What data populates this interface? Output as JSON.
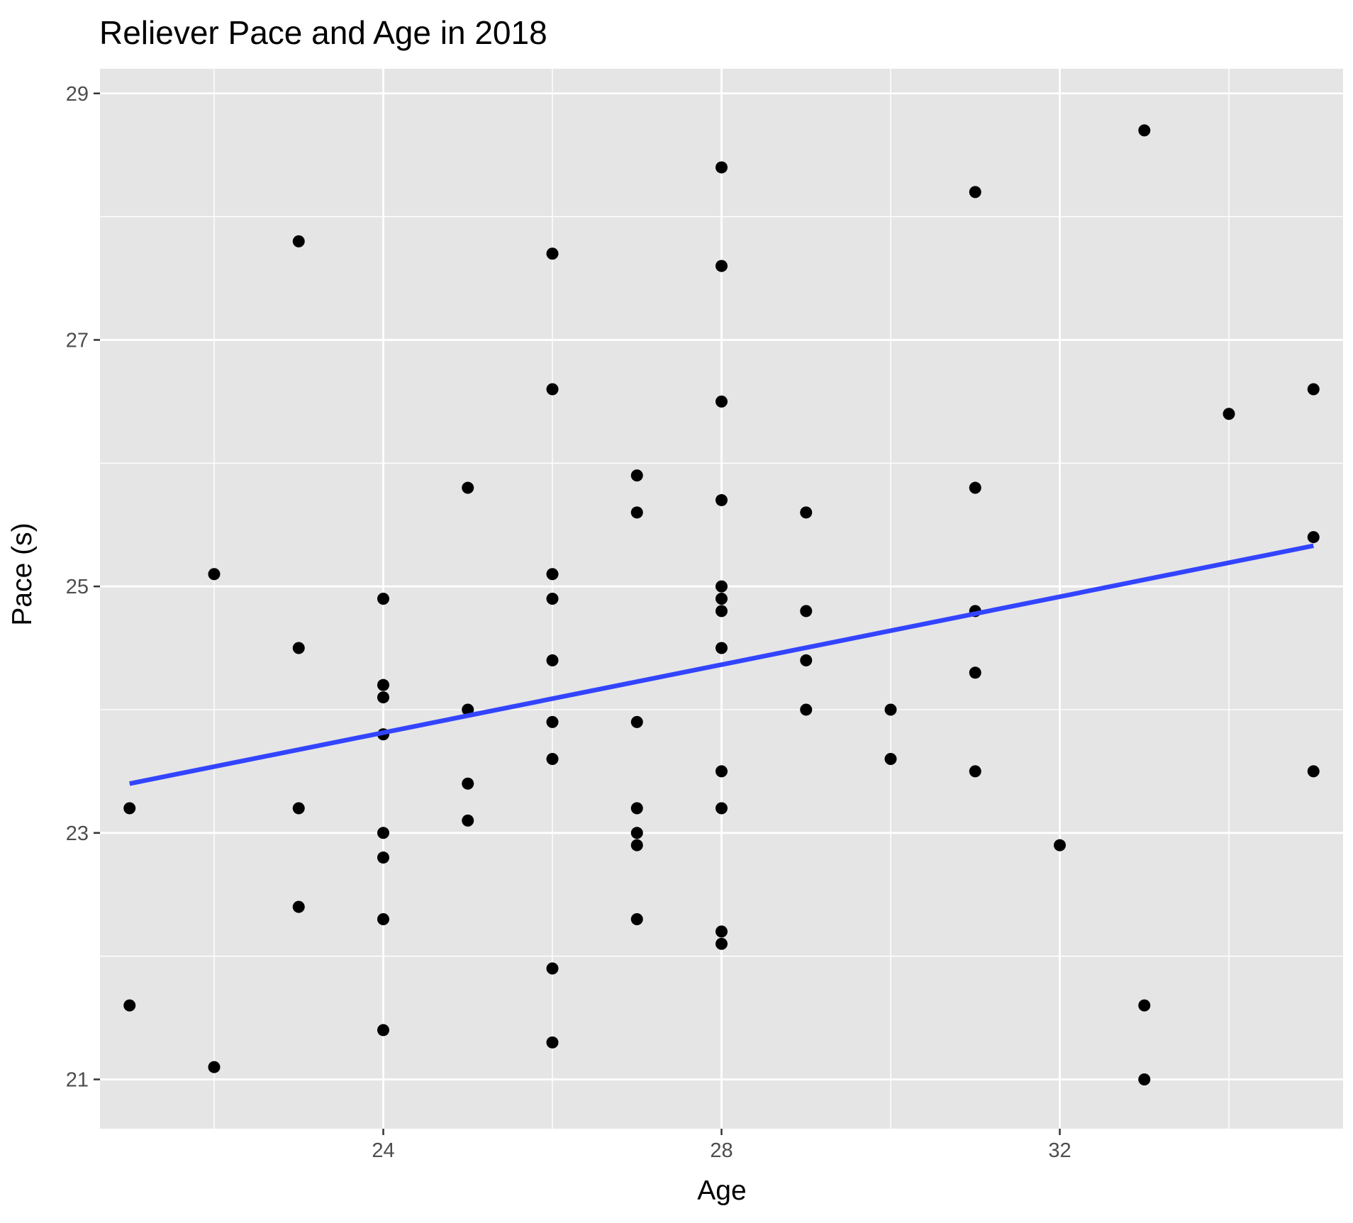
{
  "chart_data": {
    "type": "scatter",
    "title": "Reliever Pace and Age in 2018",
    "xlabel": "Age",
    "ylabel": "Pace (s)",
    "xlim": [
      20.65,
      35.35
    ],
    "ylim": [
      20.6,
      29.2
    ],
    "x_ticks": [
      24,
      28,
      32
    ],
    "x_tick_labels": [
      "24",
      "28",
      "32"
    ],
    "x_minor_ticks": [
      22,
      26,
      30,
      34
    ],
    "y_ticks": [
      21,
      23,
      25,
      27,
      29
    ],
    "y_tick_labels": [
      "21",
      "23",
      "25",
      "27",
      "29"
    ],
    "y_minor_ticks": [
      22,
      24,
      26,
      28
    ],
    "grid": true,
    "legend": "none",
    "colors": {
      "panel": "#e5e5e5",
      "grid": "#ffffff",
      "points": "#000000",
      "trend_line": "#3344ff",
      "tick_text": "#4d4d4d",
      "tick_marks": "#333333"
    },
    "points": [
      {
        "x": 21,
        "y": 23.2
      },
      {
        "x": 21,
        "y": 21.6
      },
      {
        "x": 22,
        "y": 25.1
      },
      {
        "x": 22,
        "y": 21.1
      },
      {
        "x": 23,
        "y": 27.8
      },
      {
        "x": 23,
        "y": 24.5
      },
      {
        "x": 23,
        "y": 23.2
      },
      {
        "x": 23,
        "y": 22.4
      },
      {
        "x": 24,
        "y": 24.9
      },
      {
        "x": 24,
        "y": 24.2
      },
      {
        "x": 24,
        "y": 24.1
      },
      {
        "x": 24,
        "y": 23.8
      },
      {
        "x": 24,
        "y": 23.0
      },
      {
        "x": 24,
        "y": 22.8
      },
      {
        "x": 24,
        "y": 22.3
      },
      {
        "x": 24,
        "y": 21.4
      },
      {
        "x": 25,
        "y": 25.8
      },
      {
        "x": 25,
        "y": 24.0
      },
      {
        "x": 25,
        "y": 23.4
      },
      {
        "x": 25,
        "y": 23.1
      },
      {
        "x": 26,
        "y": 27.7
      },
      {
        "x": 26,
        "y": 26.6
      },
      {
        "x": 26,
        "y": 25.1
      },
      {
        "x": 26,
        "y": 24.9
      },
      {
        "x": 26,
        "y": 24.4
      },
      {
        "x": 26,
        "y": 23.9
      },
      {
        "x": 26,
        "y": 23.6
      },
      {
        "x": 26,
        "y": 21.9
      },
      {
        "x": 26,
        "y": 21.3
      },
      {
        "x": 27,
        "y": 25.9
      },
      {
        "x": 27,
        "y": 25.6
      },
      {
        "x": 27,
        "y": 23.9
      },
      {
        "x": 27,
        "y": 23.2
      },
      {
        "x": 27,
        "y": 23.0
      },
      {
        "x": 27,
        "y": 22.9
      },
      {
        "x": 27,
        "y": 22.3
      },
      {
        "x": 28,
        "y": 28.4
      },
      {
        "x": 28,
        "y": 27.6
      },
      {
        "x": 28,
        "y": 26.5
      },
      {
        "x": 28,
        "y": 25.7
      },
      {
        "x": 28,
        "y": 25.0
      },
      {
        "x": 28,
        "y": 24.9
      },
      {
        "x": 28,
        "y": 24.8
      },
      {
        "x": 28,
        "y": 24.5
      },
      {
        "x": 28,
        "y": 23.5
      },
      {
        "x": 28,
        "y": 23.2
      },
      {
        "x": 28,
        "y": 22.2
      },
      {
        "x": 28,
        "y": 22.1
      },
      {
        "x": 29,
        "y": 25.6
      },
      {
        "x": 29,
        "y": 24.8
      },
      {
        "x": 29,
        "y": 24.4
      },
      {
        "x": 29,
        "y": 24.0
      },
      {
        "x": 30,
        "y": 24.0
      },
      {
        "x": 30,
        "y": 23.6
      },
      {
        "x": 31,
        "y": 28.2
      },
      {
        "x": 31,
        "y": 25.8
      },
      {
        "x": 31,
        "y": 24.8
      },
      {
        "x": 31,
        "y": 24.3
      },
      {
        "x": 31,
        "y": 23.5
      },
      {
        "x": 32,
        "y": 22.9
      },
      {
        "x": 33,
        "y": 28.7
      },
      {
        "x": 33,
        "y": 21.6
      },
      {
        "x": 33,
        "y": 21.0
      },
      {
        "x": 34,
        "y": 26.4
      },
      {
        "x": 35,
        "y": 26.6
      },
      {
        "x": 35,
        "y": 25.4
      },
      {
        "x": 35,
        "y": 23.5
      }
    ],
    "trend_line": {
      "method": "linear",
      "x": [
        21,
        35
      ],
      "y": [
        23.4,
        25.33
      ]
    }
  }
}
